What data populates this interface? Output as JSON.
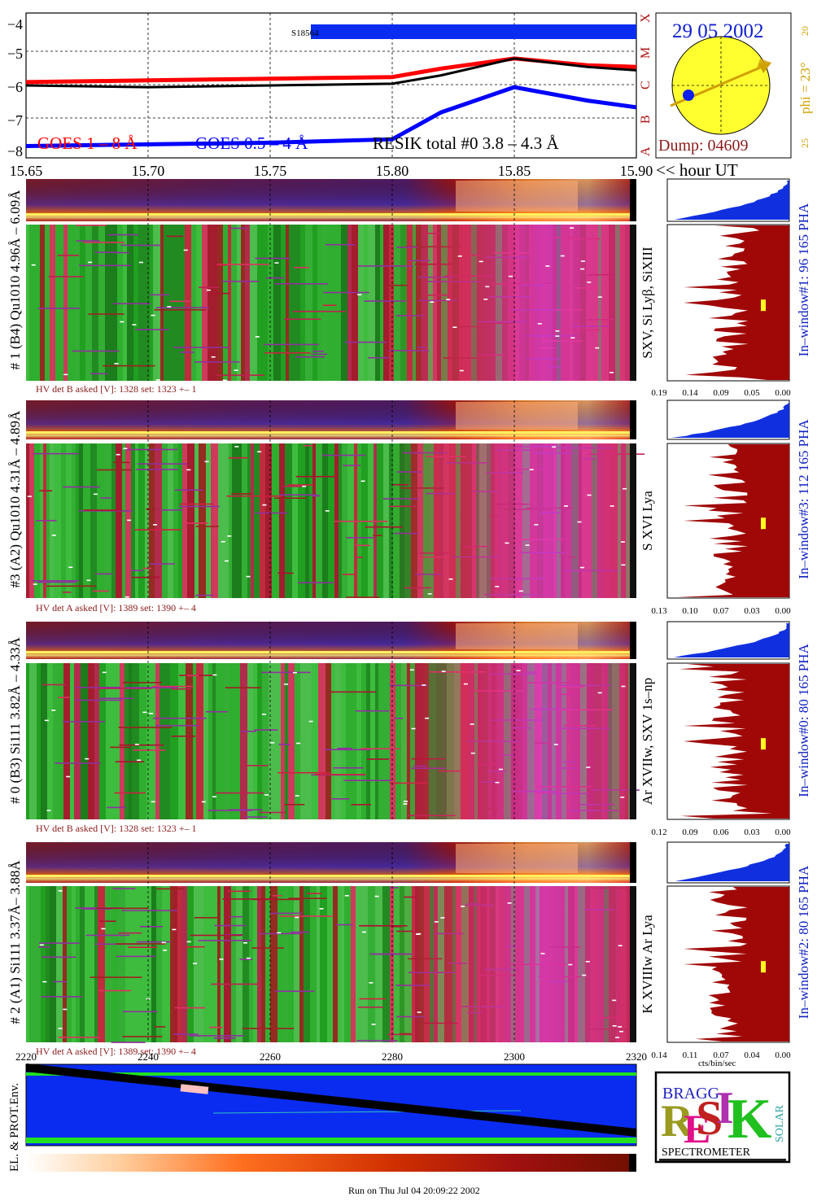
{
  "goes_panel": {
    "title": "RESIK total #0  3.8 – 4.3 Å",
    "legend": [
      {
        "name": "GOES 1 – 8 Å",
        "color": "#ff0000"
      },
      {
        "name": "GOES 0.5 – 4 Å",
        "color": "#0000ff"
      }
    ],
    "flare_bar_label": "S18564",
    "x_tick_labels": [
      "15.65",
      "15.70",
      "15.75",
      "15.80",
      "15.85",
      "15.90"
    ],
    "x_axis_suffix": "<< hour UT",
    "y_tick_labels": [
      "−4",
      "−5",
      "−6",
      "−7",
      "−8"
    ],
    "class_letters": [
      "X",
      "M",
      "C",
      "B",
      "A"
    ]
  },
  "chart_data": {
    "type": "line",
    "x": [
      15.65,
      15.7,
      15.75,
      15.8,
      15.82,
      15.85,
      15.88,
      15.9
    ],
    "xlim": [
      15.65,
      15.9
    ],
    "ylim": [
      -8.2,
      -3.9
    ],
    "series": [
      {
        "name": "GOES 1 – 8 Å",
        "color": "#ff0000",
        "values": [
          -5.95,
          -5.9,
          -5.85,
          -5.8,
          -5.55,
          -5.25,
          -5.45,
          -5.5
        ]
      },
      {
        "name": "GOES 0.5 – 4 Å",
        "color": "#0000ff",
        "values": [
          -7.85,
          -7.8,
          -7.75,
          -7.65,
          -6.85,
          -6.1,
          -6.5,
          -6.7
        ]
      },
      {
        "name": "RESIK total #0  3.8 – 4.3 Å",
        "color": "#000000",
        "values": [
          -6.05,
          -6.1,
          -6.05,
          -6.0,
          -5.75,
          -5.25,
          -5.5,
          -5.6
        ]
      }
    ]
  },
  "sun_panel": {
    "date": "29 05 2002",
    "dump": "Dump: 04609",
    "phi_label": "phi = 23°",
    "scale_top": "20",
    "scale_bottom": "25"
  },
  "channels": [
    {
      "left_label": "# 1 (B4) Qu1010 4.96Å – 6.09Å",
      "lines_label": "SXV, Si Lyβ, SiXIII",
      "window_label": "In–window#1:   96 165  PHA",
      "hv": "HV det B asked [V]:  1328 set:  1323  +–    1",
      "hist_ticks": [
        "0.19",
        "0.14",
        "0.09",
        "0.05",
        "0.00"
      ]
    },
    {
      "left_label": "#3 (A2) Qu1010  4.31Å – 4.89Å",
      "lines_label": "S XVI Lya",
      "window_label": "In–window#3:   112 165  PHA",
      "hv": "HV det A asked [V]:  1389 set:  1390  +–    4",
      "hist_ticks": [
        "0.13",
        "0.10",
        "0.07",
        "0.03",
        "0.00"
      ]
    },
    {
      "left_label": "# 0 (B3) Si111  3.82Å – 4.33Å",
      "lines_label": "Ar XVIIw,  SXV 1s–np",
      "window_label": "In–window#0:   80 165  PHA",
      "hv": "HV det B asked [V]:  1328 set:  1323  +–    1",
      "hist_ticks": [
        "0.12",
        "0.09",
        "0.06",
        "0.03",
        "0.00"
      ]
    },
    {
      "left_label": "# 2 (A1) Si111  3.37Å– 3.88Å",
      "lines_label": "K XVIIIw   Ar Lya",
      "window_label": "In–window#2:   80 165  PHA",
      "hv": "HV det A asked [V]:  1389 set:  1390  +–    4",
      "hist_ticks": [
        "0.14",
        "0.11",
        "0.07",
        "0.04",
        "0.00"
      ]
    }
  ],
  "bottom_panel": {
    "x_tick_labels": [
      "2220",
      "2240",
      "2260",
      "2280",
      "2300",
      "2320"
    ],
    "left_label": "EL. & PROT.Env.",
    "hist_unit": "cts/bin/sec"
  },
  "logo": {
    "word": "RESIK",
    "bragg": "BRAGG",
    "solar": "SOLAR",
    "spectrometer": "SPECTROMETER"
  },
  "footer": "Run on Thu Jul 04 20:09:22 2002"
}
